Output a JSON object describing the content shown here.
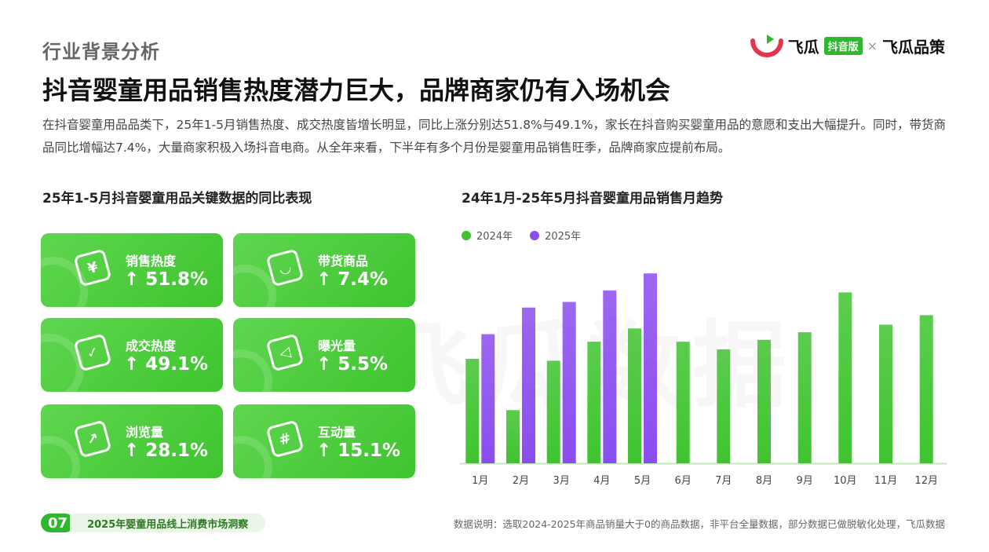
{
  "header": {
    "section": "行业背景分析",
    "brand_name": "飞瓜",
    "brand_badge": "抖音版",
    "brand_separator": "×",
    "brand_partner": "飞瓜品策"
  },
  "headline": "抖音婴童用品销售热度潜力巨大，品牌商家仍有入场机会",
  "intro": "在抖音婴童用品品类下，25年1-5月销售热度、成交热度皆增长明显，同比上涨分别达51.8%与49.1%，家长在抖音购买婴童用品的意愿和支出大幅提升。同时，带货商品同比增幅达7.4%，大量商家积极入场抖音电商。从全年来看，下半年有多个月份是婴童用品销售旺季，品牌商家应提前布局。",
  "left_panel": {
    "title": "25年1-5月抖音婴童用品关键数据的同比表现",
    "cards": [
      {
        "label": "销售热度",
        "value": "↑ 51.8%",
        "icon": "yuan-icon"
      },
      {
        "label": "带货商品",
        "value": "↑ 7.4%",
        "icon": "shopping-bag-icon"
      },
      {
        "label": "成交热度",
        "value": "↑ 49.1%",
        "icon": "check-card-icon"
      },
      {
        "label": "曝光量",
        "value": "↑ 5.5%",
        "icon": "megaphone-icon"
      },
      {
        "label": "浏览量",
        "value": "↑ 28.1%",
        "icon": "trend-board-icon"
      },
      {
        "label": "互动量",
        "value": "↑ 15.1%",
        "icon": "hashtag-icon"
      }
    ]
  },
  "right_panel": {
    "title": "24年1月-25年5月抖音婴童用品销售月趋势"
  },
  "chart_data": {
    "type": "bar",
    "categories": [
      "1月",
      "2月",
      "3月",
      "4月",
      "5月",
      "6月",
      "7月",
      "8月",
      "9月",
      "10月",
      "11月",
      "12月"
    ],
    "series": [
      {
        "name": "2024年",
        "color": "#3fc42f",
        "values": [
          55,
          28,
          54,
          64,
          71,
          64,
          60,
          65,
          69,
          90,
          73,
          78
        ]
      },
      {
        "name": "2025年",
        "color": "#8a4df0",
        "values": [
          68,
          82,
          85,
          91,
          100,
          null,
          null,
          null,
          null,
          null,
          null,
          null
        ]
      }
    ],
    "ylim": [
      0,
      110
    ],
    "grid": false,
    "legend": "top-left"
  },
  "watermark": "飞瓜数据",
  "footer": {
    "page": "07",
    "report": "2025年婴童用品线上消费市场洞察",
    "note": "数据说明：选取2024-2025年商品销量大于0的商品数据，非平台全量数据，部分数据已做脱敏化处理，飞瓜数据"
  }
}
